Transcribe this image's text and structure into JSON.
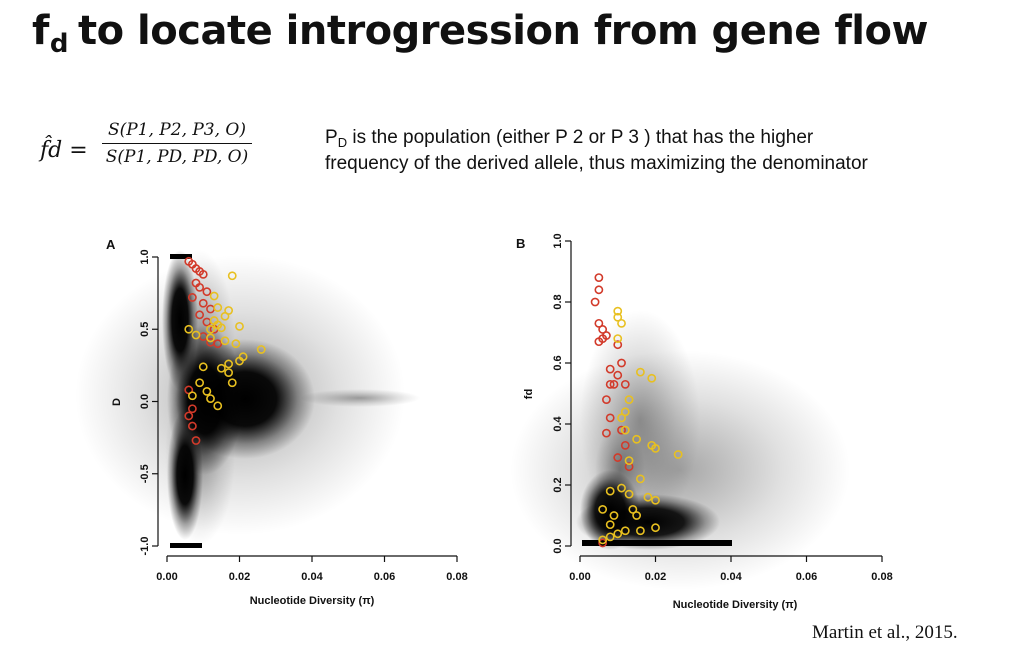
{
  "slide": {
    "title_main": "f",
    "title_sub": "d",
    "title_rest": "to locate introgression from gene flow",
    "formula_lhs": "f̂d =",
    "formula_numerator": "S(P1, P2, P3, O)",
    "formula_denominator": "S(P1, PD, PD, O)",
    "note_line1_p": "P",
    "note_line1_sub": "D",
    "note_line1_rest": " is the population (either P 2 or P 3 ) that has the higher",
    "note_line2": "frequency of the derived allele, thus maximizing the denominator",
    "citation": "Martin et al., 2015."
  },
  "colors": {
    "cloud": "#000000",
    "red_points": "#d23a2a",
    "yellow_points": "#e8c020"
  },
  "chart_data": [
    {
      "panel": "A",
      "type": "scatter",
      "xlabel": "Nucleotide Diversity (π)",
      "ylabel": "D",
      "xlim": [
        0,
        0.08
      ],
      "ylim": [
        -1.0,
        1.0
      ],
      "xticks": [
        "0.00",
        "0.02",
        "0.04",
        "0.06",
        "0.08"
      ],
      "yticks": [
        "-1.0",
        "-0.5",
        "0.0",
        "0.5",
        "1.0"
      ],
      "xtick_values": [
        0,
        0.02,
        0.04,
        0.06,
        0.08
      ],
      "ytick_values": [
        -1.0,
        -0.5,
        0.0,
        0.5,
        1.0
      ],
      "background_cloud": "dense cloud of genomic windows centred near π≈0.02, D≈0, spreading to π≈0.065",
      "series": [
        {
          "color": "red",
          "points": [
            [
              0.006,
              0.97
            ],
            [
              0.007,
              0.95
            ],
            [
              0.008,
              0.92
            ],
            [
              0.009,
              0.9
            ],
            [
              0.01,
              0.88
            ],
            [
              0.008,
              0.82
            ],
            [
              0.009,
              0.79
            ],
            [
              0.011,
              0.76
            ],
            [
              0.007,
              0.72
            ],
            [
              0.01,
              0.68
            ],
            [
              0.012,
              0.64
            ],
            [
              0.009,
              0.6
            ],
            [
              0.011,
              0.55
            ],
            [
              0.013,
              0.5
            ],
            [
              0.01,
              0.45
            ],
            [
              0.012,
              0.41
            ],
            [
              0.014,
              0.4
            ],
            [
              0.006,
              0.08
            ],
            [
              0.007,
              -0.05
            ],
            [
              0.006,
              -0.1
            ],
            [
              0.007,
              -0.17
            ],
            [
              0.008,
              -0.27
            ]
          ]
        },
        {
          "color": "yellow",
          "points": [
            [
              0.018,
              0.87
            ],
            [
              0.013,
              0.73
            ],
            [
              0.014,
              0.65
            ],
            [
              0.017,
              0.63
            ],
            [
              0.016,
              0.59
            ],
            [
              0.013,
              0.56
            ],
            [
              0.014,
              0.53
            ],
            [
              0.015,
              0.51
            ],
            [
              0.012,
              0.5
            ],
            [
              0.006,
              0.5
            ],
            [
              0.008,
              0.46
            ],
            [
              0.012,
              0.44
            ],
            [
              0.016,
              0.42
            ],
            [
              0.02,
              0.52
            ],
            [
              0.019,
              0.4
            ],
            [
              0.026,
              0.36
            ],
            [
              0.021,
              0.31
            ],
            [
              0.02,
              0.28
            ],
            [
              0.017,
              0.26
            ],
            [
              0.015,
              0.23
            ],
            [
              0.01,
              0.24
            ],
            [
              0.017,
              0.2
            ],
            [
              0.018,
              0.13
            ],
            [
              0.009,
              0.13
            ],
            [
              0.011,
              0.07
            ],
            [
              0.007,
              0.04
            ],
            [
              0.012,
              0.02
            ],
            [
              0.014,
              -0.03
            ]
          ]
        }
      ]
    },
    {
      "panel": "B",
      "type": "scatter",
      "xlabel": "Nucleotide Diversity (π)",
      "ylabel": "fd",
      "xlim": [
        0,
        0.08
      ],
      "ylim": [
        0,
        1.0
      ],
      "xticks": [
        "0.00",
        "0.02",
        "0.04",
        "0.06",
        "0.08"
      ],
      "yticks": [
        "0.0",
        "0.2",
        "0.4",
        "0.6",
        "0.8",
        "1.0"
      ],
      "xtick_values": [
        0,
        0.02,
        0.04,
        0.06,
        0.08
      ],
      "ytick_values": [
        0,
        0.2,
        0.4,
        0.6,
        0.8,
        1.0
      ],
      "background_cloud": "dense cloud of genomic windows concentrated at fd 0–0.15, π 0.005–0.035, thinning upward",
      "series": [
        {
          "color": "red",
          "points": [
            [
              0.005,
              0.88
            ],
            [
              0.005,
              0.84
            ],
            [
              0.004,
              0.8
            ],
            [
              0.005,
              0.73
            ],
            [
              0.006,
              0.71
            ],
            [
              0.007,
              0.69
            ],
            [
              0.005,
              0.67
            ],
            [
              0.006,
              0.68
            ],
            [
              0.01,
              0.66
            ],
            [
              0.011,
              0.6
            ],
            [
              0.008,
              0.58
            ],
            [
              0.01,
              0.56
            ],
            [
              0.008,
              0.53
            ],
            [
              0.009,
              0.53
            ],
            [
              0.012,
              0.53
            ],
            [
              0.007,
              0.48
            ],
            [
              0.008,
              0.42
            ],
            [
              0.011,
              0.38
            ],
            [
              0.007,
              0.37
            ],
            [
              0.012,
              0.33
            ],
            [
              0.01,
              0.29
            ],
            [
              0.013,
              0.26
            ],
            [
              0.006,
              0.01
            ]
          ]
        },
        {
          "color": "yellow",
          "points": [
            [
              0.01,
              0.77
            ],
            [
              0.01,
              0.75
            ],
            [
              0.011,
              0.73
            ],
            [
              0.01,
              0.68
            ],
            [
              0.016,
              0.57
            ],
            [
              0.019,
              0.55
            ],
            [
              0.013,
              0.48
            ],
            [
              0.012,
              0.44
            ],
            [
              0.011,
              0.42
            ],
            [
              0.012,
              0.38
            ],
            [
              0.015,
              0.35
            ],
            [
              0.019,
              0.33
            ],
            [
              0.02,
              0.32
            ],
            [
              0.026,
              0.3
            ],
            [
              0.013,
              0.28
            ],
            [
              0.016,
              0.22
            ],
            [
              0.008,
              0.18
            ],
            [
              0.011,
              0.19
            ],
            [
              0.013,
              0.17
            ],
            [
              0.018,
              0.16
            ],
            [
              0.02,
              0.15
            ],
            [
              0.006,
              0.12
            ],
            [
              0.009,
              0.1
            ],
            [
              0.014,
              0.12
            ],
            [
              0.015,
              0.1
            ],
            [
              0.008,
              0.07
            ],
            [
              0.012,
              0.05
            ],
            [
              0.016,
              0.05
            ],
            [
              0.02,
              0.06
            ],
            [
              0.008,
              0.03
            ],
            [
              0.01,
              0.04
            ],
            [
              0.006,
              0.02
            ]
          ]
        }
      ]
    }
  ]
}
